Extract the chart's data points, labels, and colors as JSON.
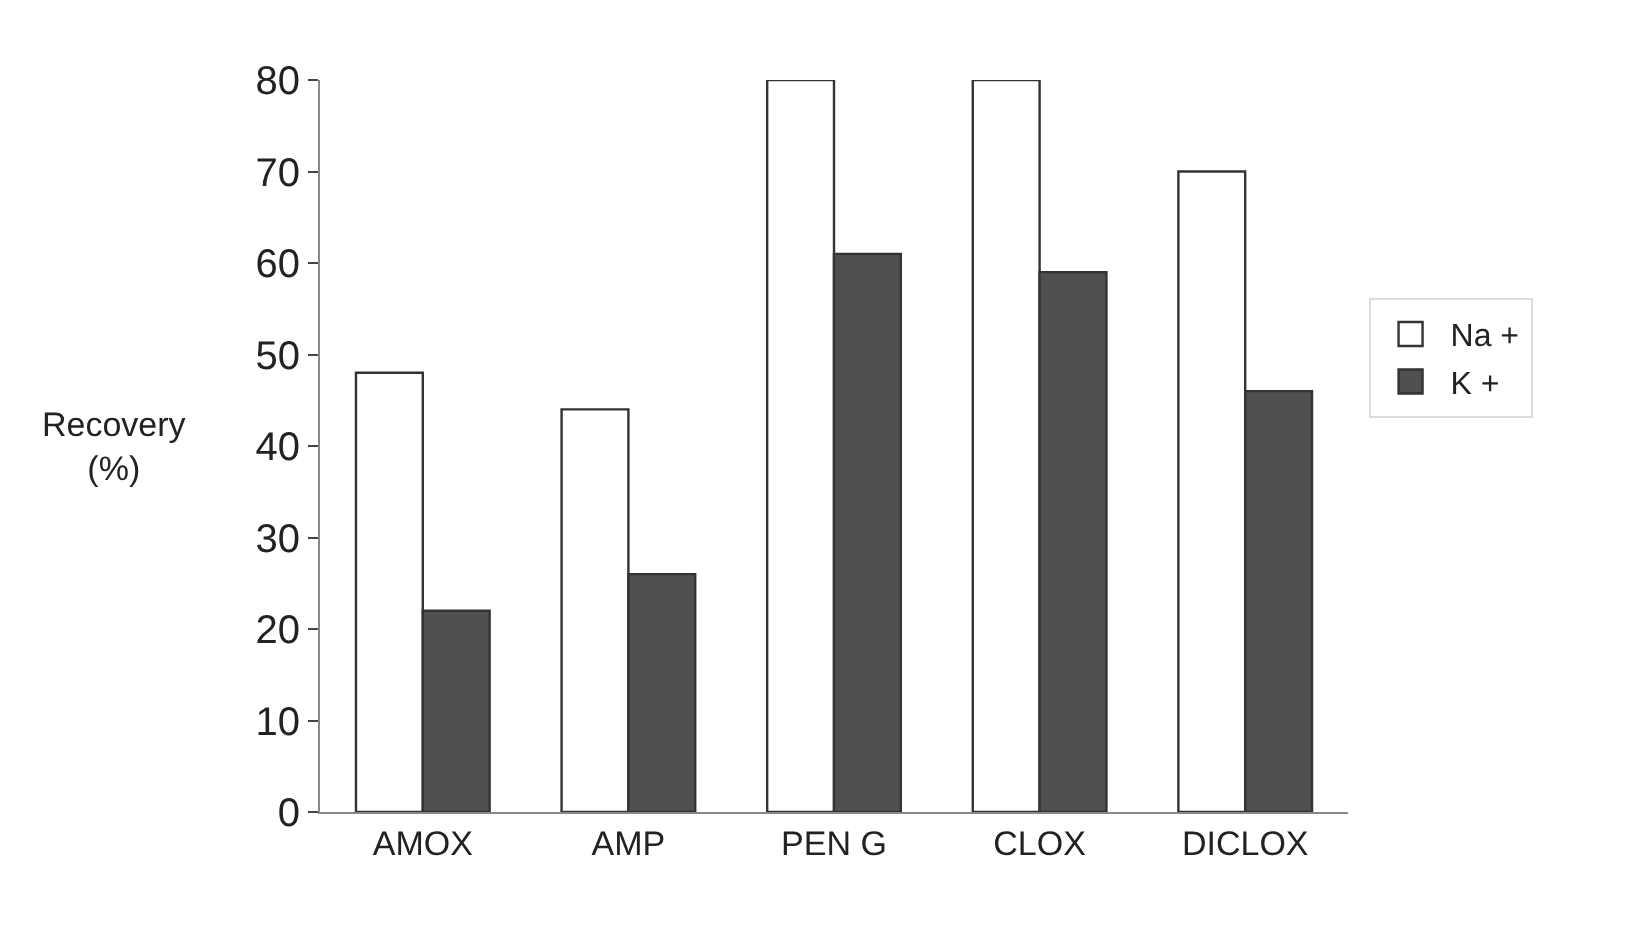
{
  "chart_data": {
    "type": "bar",
    "ylabel": "Recovery (%)",
    "categories": [
      "AMOX",
      "AMP",
      "PEN G",
      "CLOX",
      "DICLOX"
    ],
    "series": [
      {
        "name": "Na +",
        "color": "#ffffff",
        "values": [
          48,
          44,
          80,
          80,
          70
        ]
      },
      {
        "name": "K +",
        "color": "#505050",
        "values": [
          22,
          26,
          61,
          59,
          46
        ]
      }
    ],
    "ylim": [
      0,
      80
    ],
    "yticks": [
      0,
      10,
      20,
      30,
      40,
      50,
      60,
      70,
      80
    ],
    "grid": false,
    "legend": "right"
  }
}
